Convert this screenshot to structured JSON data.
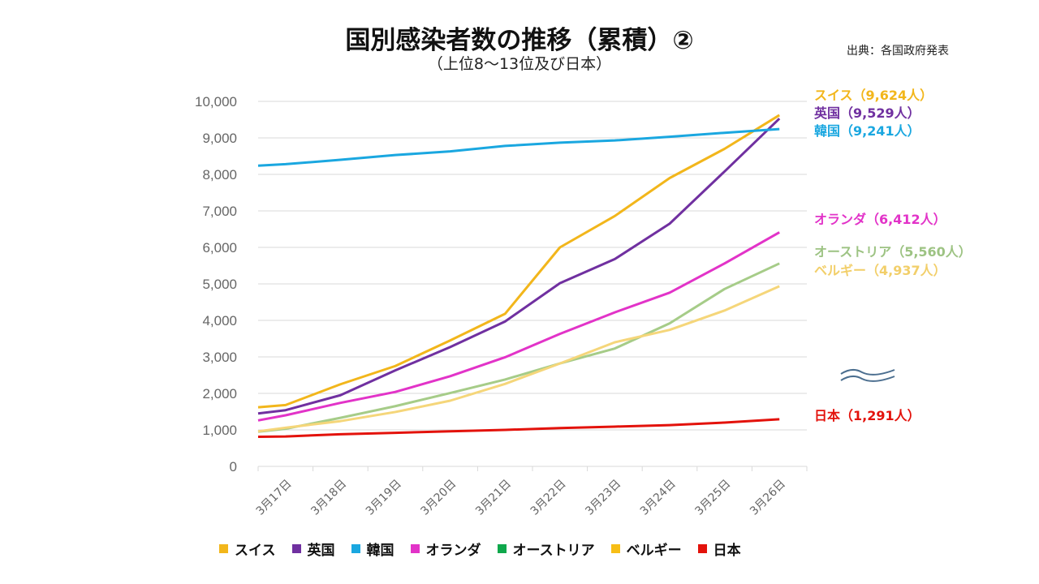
{
  "header": {
    "title": "国別感染者数の推移（累積）②",
    "subtitle": "（上位8～13位及び日本）",
    "source": "出典：各国政府発表"
  },
  "chart_data": {
    "type": "line",
    "title": "国別感染者数の推移（累積）②",
    "subtitle": "（上位8～13位及び日本）",
    "xlabel": "",
    "ylabel": "",
    "categories": [
      "3月17日",
      "3月18日",
      "3月19日",
      "3月20日",
      "3月21日",
      "3月22日",
      "3月23日",
      "3月24日",
      "3月25日",
      "3月26日"
    ],
    "ylim": [
      0,
      10000
    ],
    "yticks": [
      0,
      1000,
      2000,
      3000,
      4000,
      5000,
      6000,
      7000,
      8000,
      9000,
      10000
    ],
    "ytick_labels": [
      "0",
      "1,000",
      "2,000",
      "3,000",
      "4,000",
      "5,000",
      "6,000",
      "7,000",
      "8,000",
      "9,000",
      "10,000"
    ],
    "grid": true,
    "legend_position": "bottom",
    "series": [
      {
        "name": "スイス",
        "color": "#f2b61b",
        "lead_in": 1620,
        "values": [
          1680,
          2250,
          2750,
          3450,
          4180,
          6000,
          6860,
          7900,
          8700,
          9624
        ],
        "end_label": "スイス（9,624人）"
      },
      {
        "name": "英国",
        "color": "#7030a0",
        "lead_in": 1450,
        "values": [
          1540,
          1950,
          2630,
          3270,
          3970,
          5020,
          5680,
          6650,
          8080,
          9529
        ],
        "end_label": "英国（9,529人）"
      },
      {
        "name": "韓国",
        "color": "#1aa7e0",
        "lead_in": 8240,
        "values": [
          8280,
          8400,
          8530,
          8630,
          8780,
          8870,
          8930,
          9030,
          9140,
          9241
        ],
        "end_label": "韓国（9,241人）"
      },
      {
        "name": "オランダ",
        "color": "#e233c8",
        "lead_in": 1260,
        "values": [
          1400,
          1740,
          2040,
          2470,
          2990,
          3630,
          4220,
          4760,
          5560,
          6412
        ],
        "end_label": "オランダ（6,412人）"
      },
      {
        "name": "オーストリア",
        "color": "#a6cc88",
        "legend_color": "#0fa84c",
        "lead_in": 950,
        "values": [
          1030,
          1330,
          1650,
          2010,
          2380,
          2820,
          3230,
          3920,
          4860,
          5560
        ],
        "end_label": "オーストリア（5,560人）"
      },
      {
        "name": "ベルギー",
        "color": "#f5d67a",
        "legend_color": "#f7be16",
        "lead_in": 960,
        "values": [
          1060,
          1240,
          1490,
          1800,
          2260,
          2820,
          3400,
          3740,
          4270,
          4937
        ],
        "end_label": "ベルギー（4,937人）"
      },
      {
        "name": "日本",
        "color": "#e3120b",
        "lead_in": 810,
        "values": [
          820,
          880,
          920,
          960,
          1000,
          1050,
          1090,
          1130,
          1200,
          1291
        ],
        "end_label": "日本（1,291人）"
      }
    ],
    "annotations": [
      "axis-break-wave"
    ]
  }
}
